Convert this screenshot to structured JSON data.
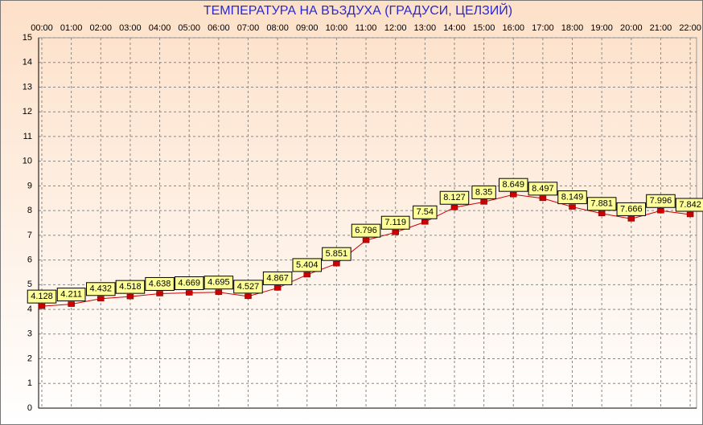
{
  "chart_data": {
    "type": "line",
    "title": "ТЕМПЕРАТУРА НА ВЪЗДУХА  (ГРАДУСИ, ЦЕЛЗИЙ)",
    "categories": [
      "00:00",
      "01:00",
      "02:00",
      "03:00",
      "04:00",
      "05:00",
      "06:00",
      "07:00",
      "08:00",
      "09:00",
      "10:00",
      "11:00",
      "12:00",
      "13:00",
      "14:00",
      "15:00",
      "16:00",
      "17:00",
      "18:00",
      "19:00",
      "20:00",
      "21:00",
      "22:00"
    ],
    "series": [
      {
        "color": "#cc0000",
        "values": [
          4.128,
          4.211,
          4.432,
          4.518,
          4.638,
          4.669,
          4.695,
          4.527,
          4.867,
          5.404,
          5.851,
          6.796,
          7.119,
          7.54,
          8.127,
          8.35,
          8.649,
          8.497,
          8.149,
          7.881,
          7.666,
          7.996,
          7.842
        ]
      }
    ],
    "ylim": [
      0,
      15
    ],
    "yticks": [
      0,
      1,
      2,
      3,
      4,
      5,
      6,
      7,
      8,
      9,
      10,
      11,
      12,
      13,
      14,
      15
    ],
    "grid": true
  }
}
